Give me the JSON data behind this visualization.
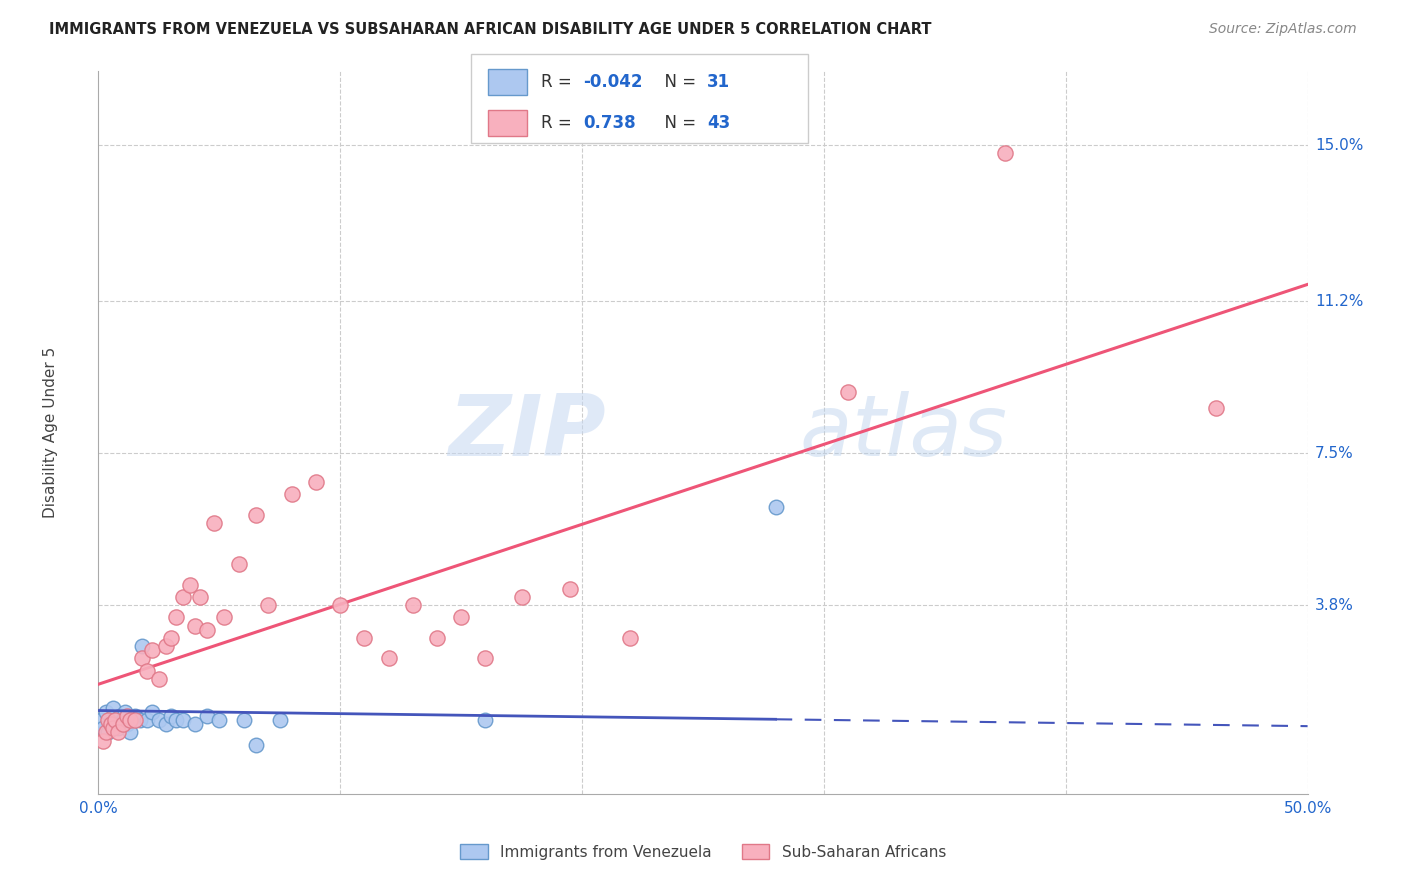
{
  "title": "IMMIGRANTS FROM VENEZUELA VS SUBSAHARAN AFRICAN DISABILITY AGE UNDER 5 CORRELATION CHART",
  "source": "Source: ZipAtlas.com",
  "ylabel": "Disability Age Under 5",
  "xlim": [
    0.0,
    0.5
  ],
  "ylim": [
    -0.008,
    0.168
  ],
  "ytick_labels": [
    "3.8%",
    "7.5%",
    "11.2%",
    "15.0%"
  ],
  "ytick_values": [
    0.038,
    0.075,
    0.112,
    0.15
  ],
  "venezuela_color": "#adc8f0",
  "venezuela_edge": "#6699cc",
  "subsaharan_color": "#f8b0be",
  "subsaharan_edge": "#e07888",
  "regression_venezuela_color": "#4455bb",
  "regression_subsaharan_color": "#ee5577",
  "watermark_zip": "ZIP",
  "watermark_atlas": "atlas",
  "background_color": "#ffffff",
  "grid_color": "#cccccc",
  "legend_R1": "-0.042",
  "legend_N1": "31",
  "legend_R2": "0.738",
  "legend_N2": "43",
  "venezuela_x": [
    0.001,
    0.002,
    0.003,
    0.004,
    0.005,
    0.006,
    0.007,
    0.008,
    0.009,
    0.01,
    0.011,
    0.012,
    0.013,
    0.015,
    0.017,
    0.018,
    0.02,
    0.022,
    0.025,
    0.028,
    0.03,
    0.032,
    0.035,
    0.04,
    0.045,
    0.05,
    0.06,
    0.065,
    0.075,
    0.16,
    0.28
  ],
  "venezuela_y": [
    0.01,
    0.008,
    0.012,
    0.007,
    0.009,
    0.013,
    0.01,
    0.008,
    0.011,
    0.01,
    0.012,
    0.009,
    0.007,
    0.011,
    0.01,
    0.028,
    0.01,
    0.012,
    0.01,
    0.009,
    0.011,
    0.01,
    0.01,
    0.009,
    0.011,
    0.01,
    0.01,
    0.004,
    0.01,
    0.01,
    0.062
  ],
  "subsaharan_x": [
    0.002,
    0.003,
    0.004,
    0.005,
    0.006,
    0.007,
    0.008,
    0.01,
    0.012,
    0.013,
    0.015,
    0.018,
    0.02,
    0.022,
    0.025,
    0.028,
    0.03,
    0.032,
    0.035,
    0.038,
    0.04,
    0.042,
    0.045,
    0.048,
    0.052,
    0.058,
    0.065,
    0.07,
    0.08,
    0.09,
    0.1,
    0.11,
    0.12,
    0.13,
    0.14,
    0.15,
    0.16,
    0.175,
    0.195,
    0.22,
    0.31,
    0.375,
    0.462
  ],
  "subsaharan_y": [
    0.005,
    0.007,
    0.01,
    0.009,
    0.008,
    0.01,
    0.007,
    0.009,
    0.011,
    0.01,
    0.01,
    0.025,
    0.022,
    0.027,
    0.02,
    0.028,
    0.03,
    0.035,
    0.04,
    0.043,
    0.033,
    0.04,
    0.032,
    0.058,
    0.035,
    0.048,
    0.06,
    0.038,
    0.065,
    0.068,
    0.038,
    0.03,
    0.025,
    0.038,
    0.03,
    0.035,
    0.025,
    0.04,
    0.042,
    0.03,
    0.09,
    0.148,
    0.086
  ]
}
